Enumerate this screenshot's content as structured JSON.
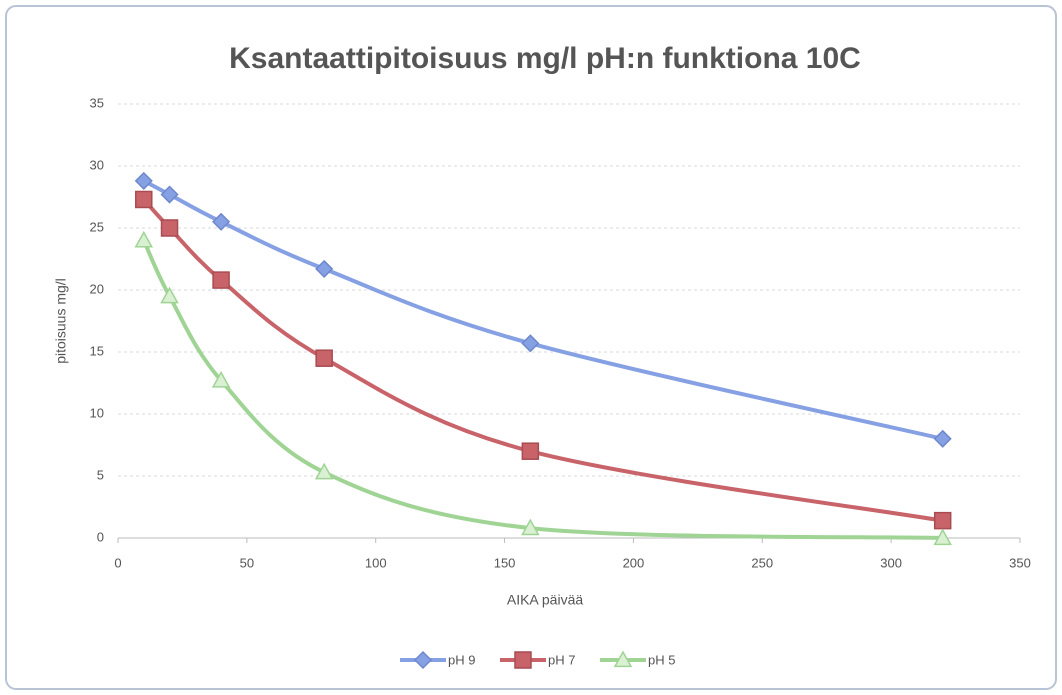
{
  "chart_data": {
    "type": "line",
    "title": "Ksantaattipitoisuus mg/l pH:n funktiona 10C",
    "x_label": "AIKA päivää",
    "y_label": "pitoisuus mg/l",
    "x": [
      10,
      20,
      40,
      80,
      160,
      320
    ],
    "series": [
      {
        "name": "pH 9",
        "color": "#86a0e4",
        "marker": "diamond",
        "values": [
          28.8,
          27.7,
          25.5,
          21.7,
          15.7,
          8.0
        ]
      },
      {
        "name": "pH 7",
        "color": "#c9636a",
        "marker": "square",
        "values": [
          27.3,
          25.0,
          20.8,
          14.5,
          7.0,
          1.4
        ]
      },
      {
        "name": "pH 5",
        "color": "#9fd494",
        "marker": "triangle",
        "values": [
          24.0,
          19.5,
          12.7,
          5.3,
          0.8,
          0
        ]
      }
    ],
    "xlim": [
      0,
      350
    ],
    "xticks": [
      0,
      50,
      100,
      150,
      200,
      250,
      300,
      350
    ],
    "ylim": [
      0,
      35
    ],
    "yticks": [
      0,
      5,
      10,
      15,
      20,
      25,
      30,
      35
    ],
    "grid": true,
    "smooth": true,
    "legend": "bottom"
  }
}
